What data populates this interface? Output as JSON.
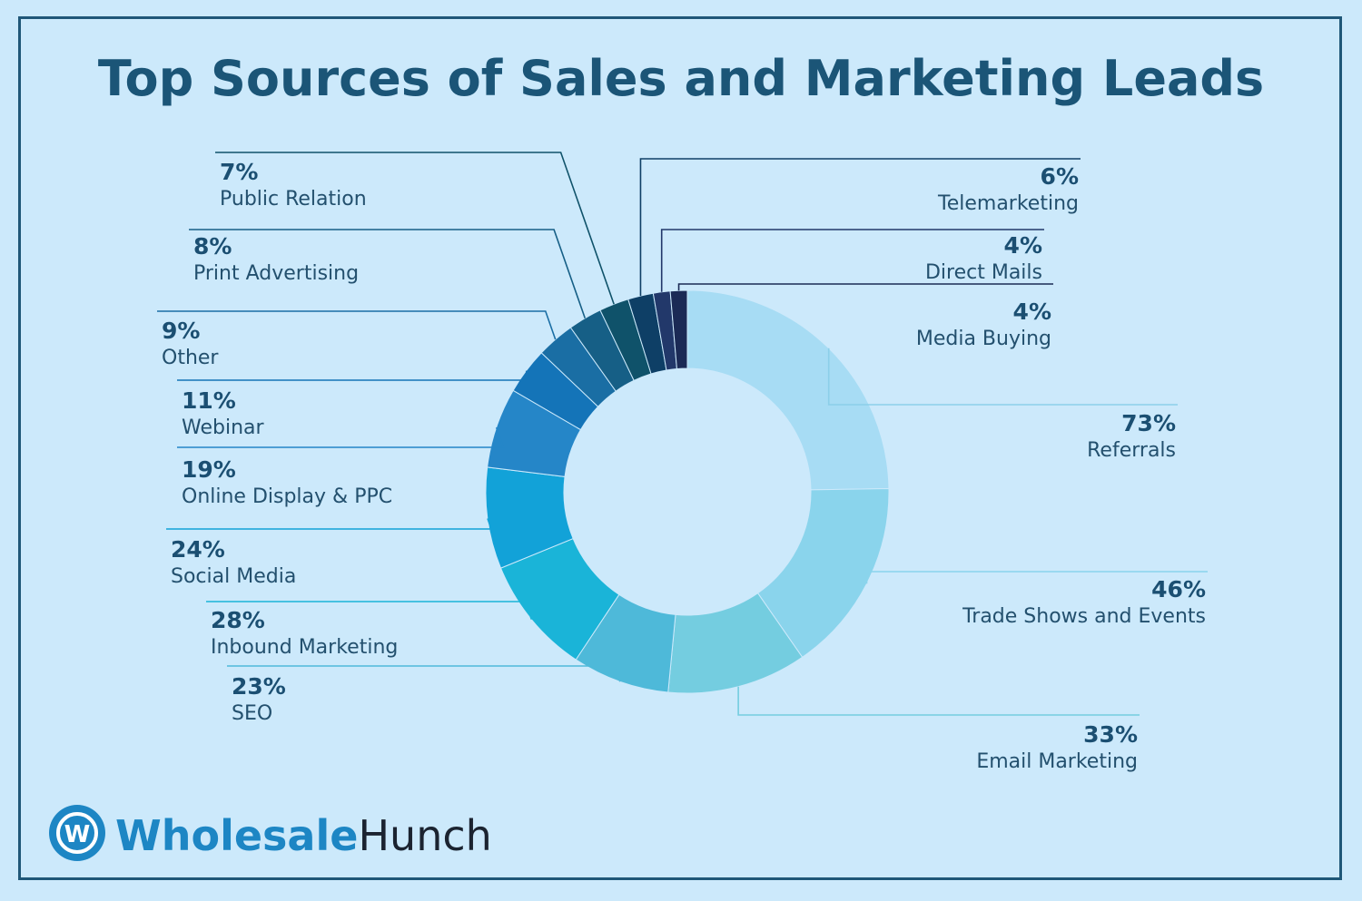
{
  "chart_data": {
    "type": "pie",
    "title": "Top Sources of Sales and Marketing Leads",
    "slices": [
      {
        "label": "Referrals",
        "value": 73,
        "display": "73%",
        "color": "#a7dcf4"
      },
      {
        "label": "Trade Shows and Events",
        "value": 46,
        "display": "46%",
        "color": "#8ad4ec"
      },
      {
        "label": "Email Marketing",
        "value": 33,
        "display": "33%",
        "color": "#74cde0"
      },
      {
        "label": "SEO",
        "value": 23,
        "display": "23%",
        "color": "#4eb9d9"
      },
      {
        "label": "Inbound Marketing",
        "value": 28,
        "display": "28%",
        "color": "#1ab4d8"
      },
      {
        "label": "Social Media",
        "value": 24,
        "display": "24%",
        "color": "#12a2d8"
      },
      {
        "label": "Online Display & PPC",
        "value": 19,
        "display": "19%",
        "color": "#2586c8"
      },
      {
        "label": "Webinar",
        "value": 11,
        "display": "11%",
        "color": "#1474b8"
      },
      {
        "label": "Other",
        "value": 9,
        "display": "9%",
        "color": "#1a6ea4"
      },
      {
        "label": "Print Advertising",
        "value": 8,
        "display": "8%",
        "color": "#165f86"
      },
      {
        "label": "Public Relation",
        "value": 7,
        "display": "7%",
        "color": "#0f526a"
      },
      {
        "label": "Telemarketing",
        "value": 6,
        "display": "6%",
        "color": "#0e3f66"
      },
      {
        "label": "Direct Mails",
        "value": 4,
        "display": "4%",
        "color": "#22386a"
      },
      {
        "label": "Media Buying",
        "value": 4,
        "display": "4%",
        "color": "#1b2a55"
      }
    ]
  },
  "brand": {
    "logo_glyph": "W",
    "name_part1": "Wholesale",
    "name_part2": "Hunch",
    "accent": "#1d86c4",
    "background": "#cce9fb",
    "frame": "#1f5778"
  }
}
